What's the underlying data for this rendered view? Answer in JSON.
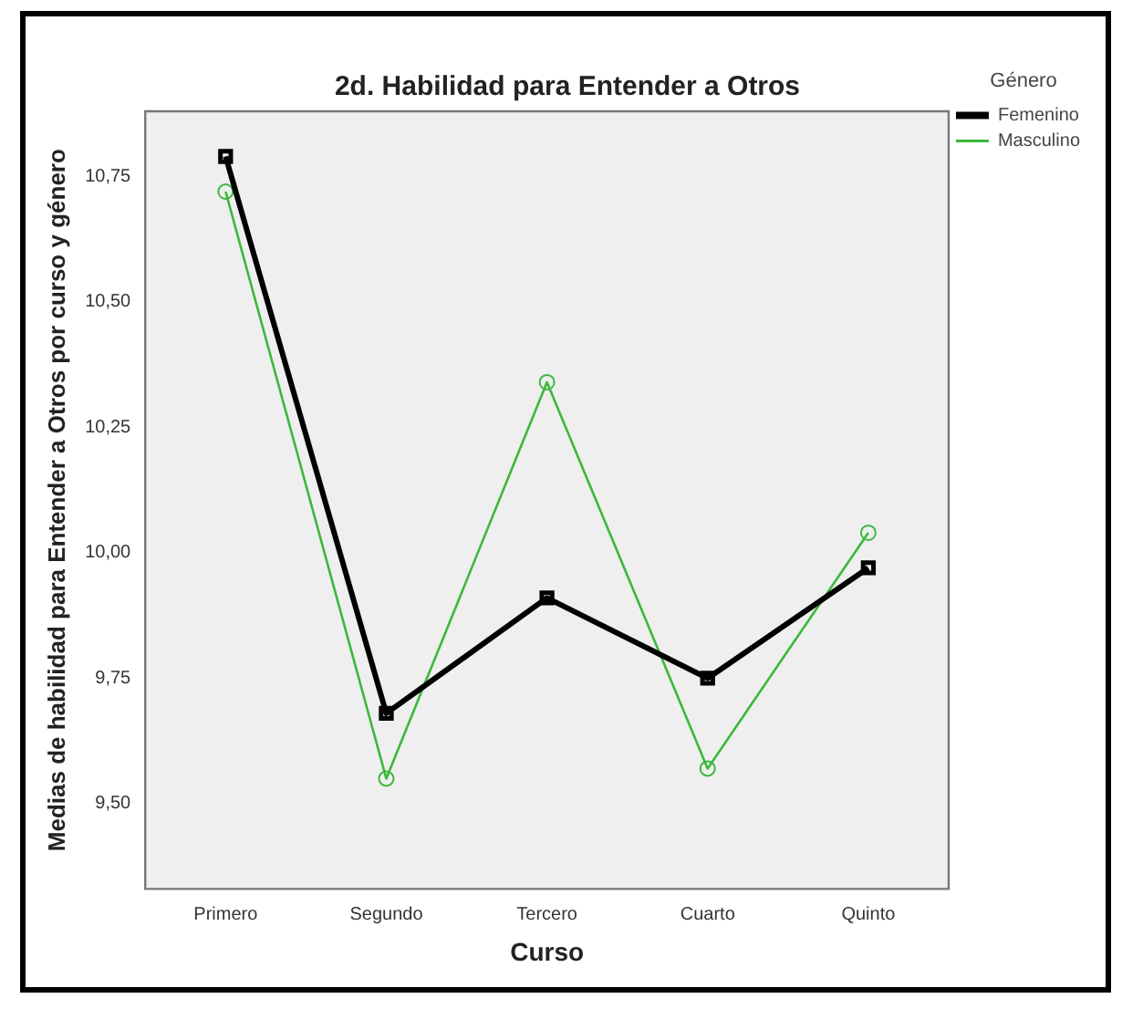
{
  "chart_data": {
    "type": "line",
    "title": "2d. Habilidad para Entender a Otros",
    "xlabel": "Curso",
    "ylabel": "Medias de habilidad para Entender a Otros por curso y género",
    "legend_title": "Género",
    "legend": "top right",
    "grid": false,
    "categories": [
      "Primero",
      "Segundo",
      "Tercero",
      "Cuarto",
      "Quinto"
    ],
    "ylim": [
      9.33,
      10.88
    ],
    "yticks": [
      {
        "value": 9.5,
        "label": "9,50"
      },
      {
        "value": 9.75,
        "label": "9,75"
      },
      {
        "value": 10,
        "label": "10,00"
      },
      {
        "value": 10.25,
        "label": "10,25"
      },
      {
        "value": 10.5,
        "label": "10,50"
      },
      {
        "value": 10.75,
        "label": "10,75"
      }
    ],
    "series": [
      {
        "name": "Femenino",
        "color": "#000000",
        "marker": "square",
        "values": [
          10.79,
          9.68,
          9.91,
          9.75,
          9.97
        ]
      },
      {
        "name": "Masculino",
        "color": "#3cb83c",
        "marker": "circle",
        "values": [
          10.72,
          9.55,
          10.34,
          9.57,
          10.04
        ]
      }
    ]
  }
}
